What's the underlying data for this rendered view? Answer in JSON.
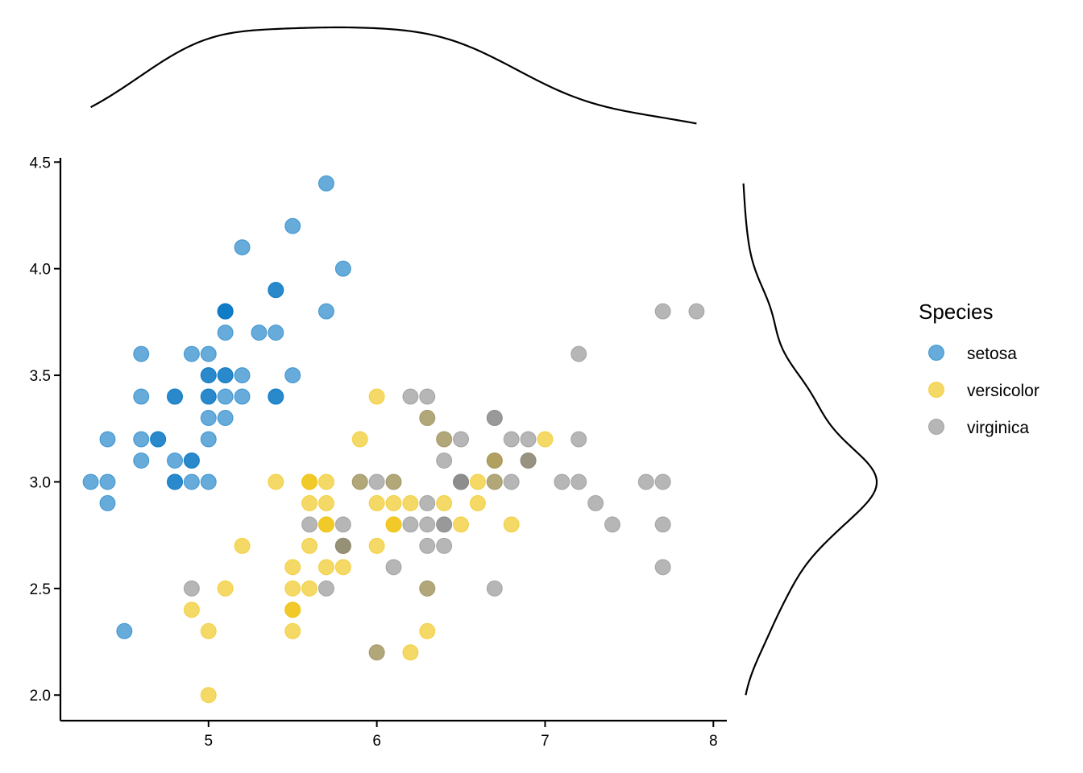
{
  "chart_data": {
    "type": "scatter",
    "title": "",
    "xlabel": "",
    "ylabel": "",
    "xlim": [
      4.12,
      8.08
    ],
    "ylim": [
      1.88,
      4.52
    ],
    "x_ticks": [
      5,
      6,
      7,
      8
    ],
    "x_tick_labels": [
      "5",
      "6",
      "7",
      "8"
    ],
    "y_ticks": [
      2.0,
      2.5,
      3.0,
      3.5,
      4.0,
      4.5
    ],
    "y_tick_labels": [
      "2.0",
      "2.5",
      "3.0",
      "3.5",
      "4.0",
      "4.5"
    ],
    "grid": false,
    "point_opacity": 0.6,
    "legend": {
      "title": "Species",
      "position": "right"
    },
    "marginal_plots": {
      "top": "density of x",
      "right": "density of y"
    },
    "series": [
      {
        "name": "setosa",
        "color": "#0073C2",
        "points": [
          [
            5.1,
            3.5
          ],
          [
            4.9,
            3.0
          ],
          [
            4.7,
            3.2
          ],
          [
            4.6,
            3.1
          ],
          [
            5.0,
            3.6
          ],
          [
            5.4,
            3.9
          ],
          [
            4.6,
            3.4
          ],
          [
            5.0,
            3.4
          ],
          [
            4.4,
            2.9
          ],
          [
            4.9,
            3.1
          ],
          [
            5.4,
            3.7
          ],
          [
            4.8,
            3.4
          ],
          [
            4.8,
            3.0
          ],
          [
            4.3,
            3.0
          ],
          [
            5.8,
            4.0
          ],
          [
            5.7,
            4.4
          ],
          [
            5.4,
            3.9
          ],
          [
            5.1,
            3.5
          ],
          [
            5.7,
            3.8
          ],
          [
            5.1,
            3.8
          ],
          [
            5.4,
            3.4
          ],
          [
            5.1,
            3.7
          ],
          [
            4.6,
            3.6
          ],
          [
            5.1,
            3.3
          ],
          [
            4.8,
            3.4
          ],
          [
            5.0,
            3.0
          ],
          [
            5.0,
            3.4
          ],
          [
            5.2,
            3.5
          ],
          [
            5.2,
            3.4
          ],
          [
            4.7,
            3.2
          ],
          [
            4.8,
            3.1
          ],
          [
            5.4,
            3.4
          ],
          [
            5.2,
            4.1
          ],
          [
            5.5,
            4.2
          ],
          [
            4.9,
            3.1
          ],
          [
            5.0,
            3.2
          ],
          [
            5.5,
            3.5
          ],
          [
            4.9,
            3.6
          ],
          [
            4.4,
            3.0
          ],
          [
            5.1,
            3.4
          ],
          [
            5.0,
            3.5
          ],
          [
            4.5,
            2.3
          ],
          [
            4.4,
            3.2
          ],
          [
            5.0,
            3.5
          ],
          [
            5.1,
            3.8
          ],
          [
            4.8,
            3.0
          ],
          [
            5.1,
            3.8
          ],
          [
            4.6,
            3.2
          ],
          [
            5.3,
            3.7
          ],
          [
            5.0,
            3.3
          ]
        ]
      },
      {
        "name": "versicolor",
        "color": "#EFC000",
        "points": [
          [
            7.0,
            3.2
          ],
          [
            6.4,
            3.2
          ],
          [
            6.9,
            3.1
          ],
          [
            5.5,
            2.3
          ],
          [
            6.5,
            2.8
          ],
          [
            5.7,
            2.8
          ],
          [
            6.3,
            3.3
          ],
          [
            4.9,
            2.4
          ],
          [
            6.6,
            2.9
          ],
          [
            5.2,
            2.7
          ],
          [
            5.0,
            2.0
          ],
          [
            5.9,
            3.0
          ],
          [
            6.0,
            2.2
          ],
          [
            6.1,
            2.9
          ],
          [
            5.6,
            2.9
          ],
          [
            6.7,
            3.1
          ],
          [
            5.6,
            3.0
          ],
          [
            5.8,
            2.7
          ],
          [
            6.2,
            2.2
          ],
          [
            5.6,
            2.5
          ],
          [
            5.9,
            3.2
          ],
          [
            6.1,
            2.8
          ],
          [
            6.3,
            2.5
          ],
          [
            6.1,
            2.8
          ],
          [
            6.4,
            2.9
          ],
          [
            6.6,
            3.0
          ],
          [
            6.8,
            2.8
          ],
          [
            6.7,
            3.0
          ],
          [
            6.0,
            2.9
          ],
          [
            5.7,
            2.6
          ],
          [
            5.5,
            2.4
          ],
          [
            5.5,
            2.4
          ],
          [
            5.8,
            2.7
          ],
          [
            6.0,
            2.7
          ],
          [
            5.4,
            3.0
          ],
          [
            6.0,
            3.4
          ],
          [
            6.7,
            3.1
          ],
          [
            6.3,
            2.3
          ],
          [
            5.6,
            3.0
          ],
          [
            5.5,
            2.5
          ],
          [
            5.5,
            2.6
          ],
          [
            6.1,
            3.0
          ],
          [
            5.8,
            2.6
          ],
          [
            5.0,
            2.3
          ],
          [
            5.6,
            2.7
          ],
          [
            5.7,
            3.0
          ],
          [
            5.7,
            2.9
          ],
          [
            6.2,
            2.9
          ],
          [
            5.1,
            2.5
          ],
          [
            5.7,
            2.8
          ]
        ]
      },
      {
        "name": "virginica",
        "color": "#868686",
        "points": [
          [
            6.3,
            3.3
          ],
          [
            5.8,
            2.7
          ],
          [
            7.1,
            3.0
          ],
          [
            6.3,
            2.9
          ],
          [
            6.5,
            3.0
          ],
          [
            7.6,
            3.0
          ],
          [
            4.9,
            2.5
          ],
          [
            7.3,
            2.9
          ],
          [
            6.7,
            2.5
          ],
          [
            7.2,
            3.6
          ],
          [
            6.5,
            3.2
          ],
          [
            6.4,
            2.7
          ],
          [
            6.8,
            3.0
          ],
          [
            5.7,
            2.5
          ],
          [
            5.8,
            2.8
          ],
          [
            6.4,
            3.2
          ],
          [
            6.5,
            3.0
          ],
          [
            7.7,
            3.8
          ],
          [
            7.7,
            2.6
          ],
          [
            6.0,
            2.2
          ],
          [
            6.9,
            3.2
          ],
          [
            5.6,
            2.8
          ],
          [
            7.7,
            2.8
          ],
          [
            6.3,
            2.7
          ],
          [
            6.7,
            3.3
          ],
          [
            7.2,
            3.2
          ],
          [
            6.2,
            2.8
          ],
          [
            6.1,
            3.0
          ],
          [
            6.4,
            2.8
          ],
          [
            7.2,
            3.0
          ],
          [
            7.4,
            2.8
          ],
          [
            7.9,
            3.8
          ],
          [
            6.4,
            2.8
          ],
          [
            6.3,
            2.8
          ],
          [
            6.1,
            2.6
          ],
          [
            7.7,
            3.0
          ],
          [
            6.3,
            3.4
          ],
          [
            6.4,
            3.1
          ],
          [
            6.0,
            3.0
          ],
          [
            6.9,
            3.1
          ],
          [
            6.7,
            3.1
          ],
          [
            6.9,
            3.1
          ],
          [
            5.8,
            2.7
          ],
          [
            6.8,
            3.2
          ],
          [
            6.7,
            3.3
          ],
          [
            6.7,
            3.0
          ],
          [
            6.3,
            2.5
          ],
          [
            6.5,
            3.0
          ],
          [
            6.2,
            3.4
          ],
          [
            5.9,
            3.0
          ]
        ]
      }
    ]
  }
}
